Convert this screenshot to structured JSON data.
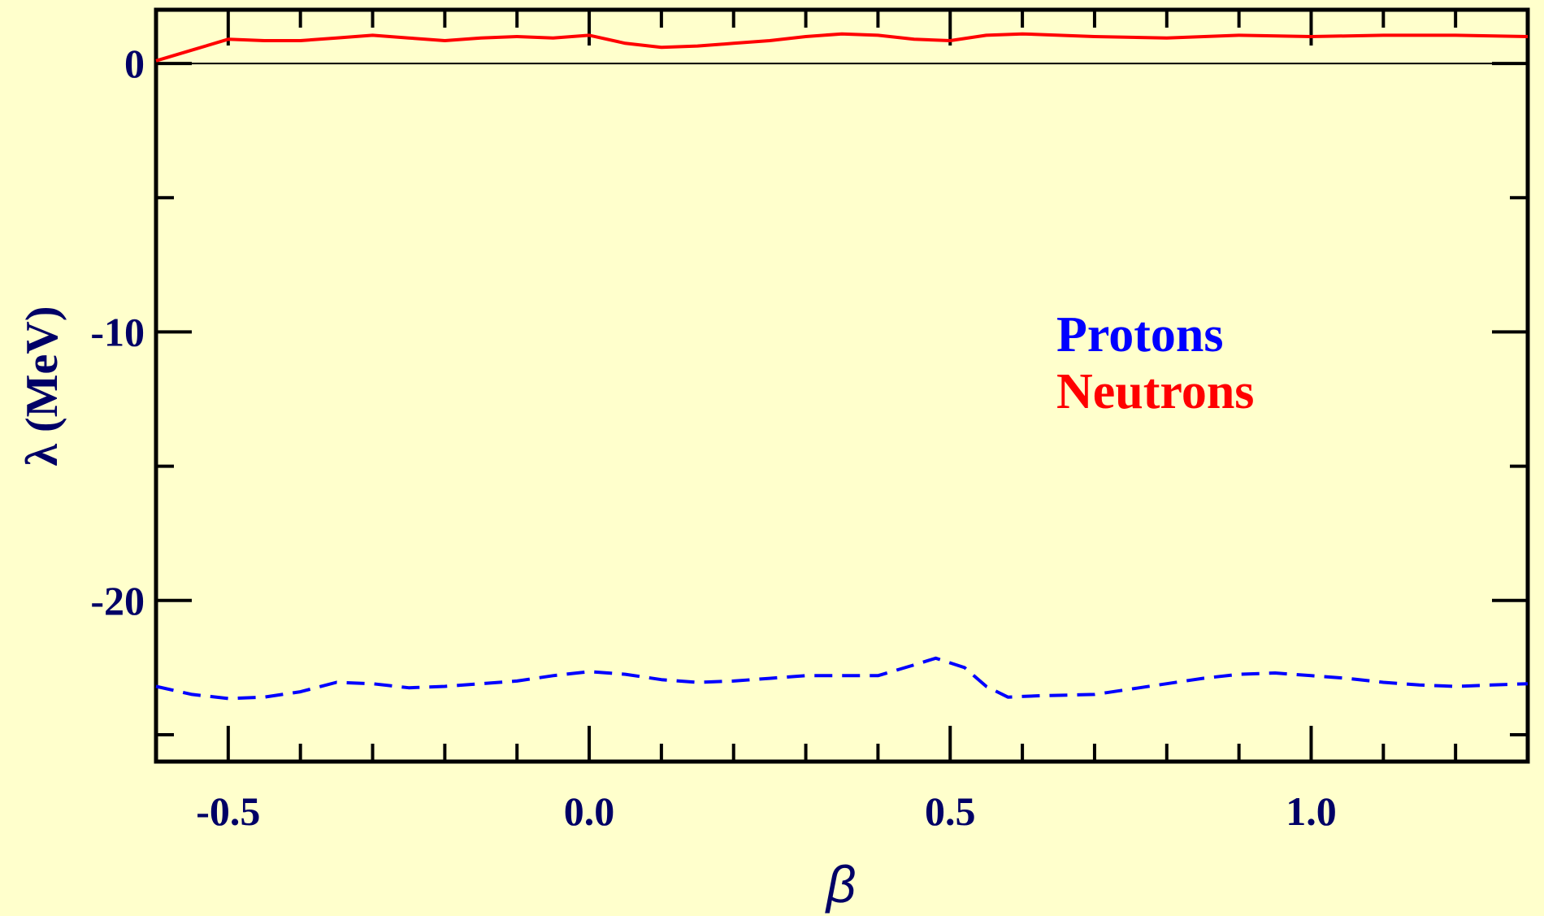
{
  "chart_data": {
    "type": "line",
    "xlabel": "β",
    "ylabel": "λ (MeV)",
    "xlim": [
      -0.6,
      1.3
    ],
    "ylim": [
      -26,
      2
    ],
    "x_ticks": [
      {
        "value": -0.5,
        "label": "-0.5"
      },
      {
        "value": 0.0,
        "label": "0.0"
      },
      {
        "value": 0.5,
        "label": "0.5"
      },
      {
        "value": 1.0,
        "label": "1.0"
      }
    ],
    "x_minor_step": 0.1,
    "y_ticks": [
      {
        "value": 0,
        "label": "0"
      },
      {
        "value": -10,
        "label": "-10"
      },
      {
        "value": -20,
        "label": "-20"
      }
    ],
    "y_minor_step": 5,
    "zero_line": true,
    "grid": false,
    "legend_position": "right-middle",
    "colors": {
      "background": "#ffffcc",
      "axis": "#000000",
      "text": "#000066"
    },
    "series": [
      {
        "name": "Protons",
        "color": "#0000ff",
        "dash": "dashed",
        "points": [
          [
            -0.6,
            -23.2
          ],
          [
            -0.55,
            -23.5
          ],
          [
            -0.5,
            -23.65
          ],
          [
            -0.45,
            -23.6
          ],
          [
            -0.4,
            -23.4
          ],
          [
            -0.35,
            -23.05
          ],
          [
            -0.3,
            -23.1
          ],
          [
            -0.25,
            -23.25
          ],
          [
            -0.2,
            -23.2
          ],
          [
            -0.15,
            -23.1
          ],
          [
            -0.1,
            -23.0
          ],
          [
            -0.05,
            -22.8
          ],
          [
            0.0,
            -22.65
          ],
          [
            0.05,
            -22.75
          ],
          [
            0.1,
            -22.95
          ],
          [
            0.15,
            -23.05
          ],
          [
            0.2,
            -23.0
          ],
          [
            0.25,
            -22.9
          ],
          [
            0.3,
            -22.8
          ],
          [
            0.35,
            -22.8
          ],
          [
            0.4,
            -22.8
          ],
          [
            0.45,
            -22.4
          ],
          [
            0.48,
            -22.15
          ],
          [
            0.52,
            -22.5
          ],
          [
            0.55,
            -23.2
          ],
          [
            0.58,
            -23.6
          ],
          [
            0.62,
            -23.55
          ],
          [
            0.7,
            -23.5
          ],
          [
            0.75,
            -23.3
          ],
          [
            0.8,
            -23.1
          ],
          [
            0.85,
            -22.9
          ],
          [
            0.9,
            -22.75
          ],
          [
            0.95,
            -22.7
          ],
          [
            1.0,
            -22.8
          ],
          [
            1.05,
            -22.9
          ],
          [
            1.1,
            -23.05
          ],
          [
            1.15,
            -23.15
          ],
          [
            1.2,
            -23.2
          ],
          [
            1.25,
            -23.15
          ],
          [
            1.3,
            -23.1
          ]
        ]
      },
      {
        "name": "Neutrons",
        "color": "#ff0000",
        "dash": "solid",
        "points": [
          [
            -0.6,
            0.1
          ],
          [
            -0.55,
            0.5
          ],
          [
            -0.5,
            0.9
          ],
          [
            -0.45,
            0.85
          ],
          [
            -0.4,
            0.85
          ],
          [
            -0.35,
            0.95
          ],
          [
            -0.3,
            1.05
          ],
          [
            -0.25,
            0.95
          ],
          [
            -0.2,
            0.85
          ],
          [
            -0.15,
            0.95
          ],
          [
            -0.1,
            1.0
          ],
          [
            -0.05,
            0.95
          ],
          [
            0.0,
            1.05
          ],
          [
            0.05,
            0.75
          ],
          [
            0.1,
            0.6
          ],
          [
            0.15,
            0.65
          ],
          [
            0.2,
            0.75
          ],
          [
            0.25,
            0.85
          ],
          [
            0.3,
            1.0
          ],
          [
            0.35,
            1.1
          ],
          [
            0.4,
            1.05
          ],
          [
            0.45,
            0.9
          ],
          [
            0.5,
            0.85
          ],
          [
            0.55,
            1.05
          ],
          [
            0.6,
            1.1
          ],
          [
            0.7,
            1.0
          ],
          [
            0.8,
            0.95
          ],
          [
            0.9,
            1.05
          ],
          [
            1.0,
            1.0
          ],
          [
            1.1,
            1.05
          ],
          [
            1.2,
            1.05
          ],
          [
            1.3,
            1.0
          ]
        ]
      }
    ]
  }
}
